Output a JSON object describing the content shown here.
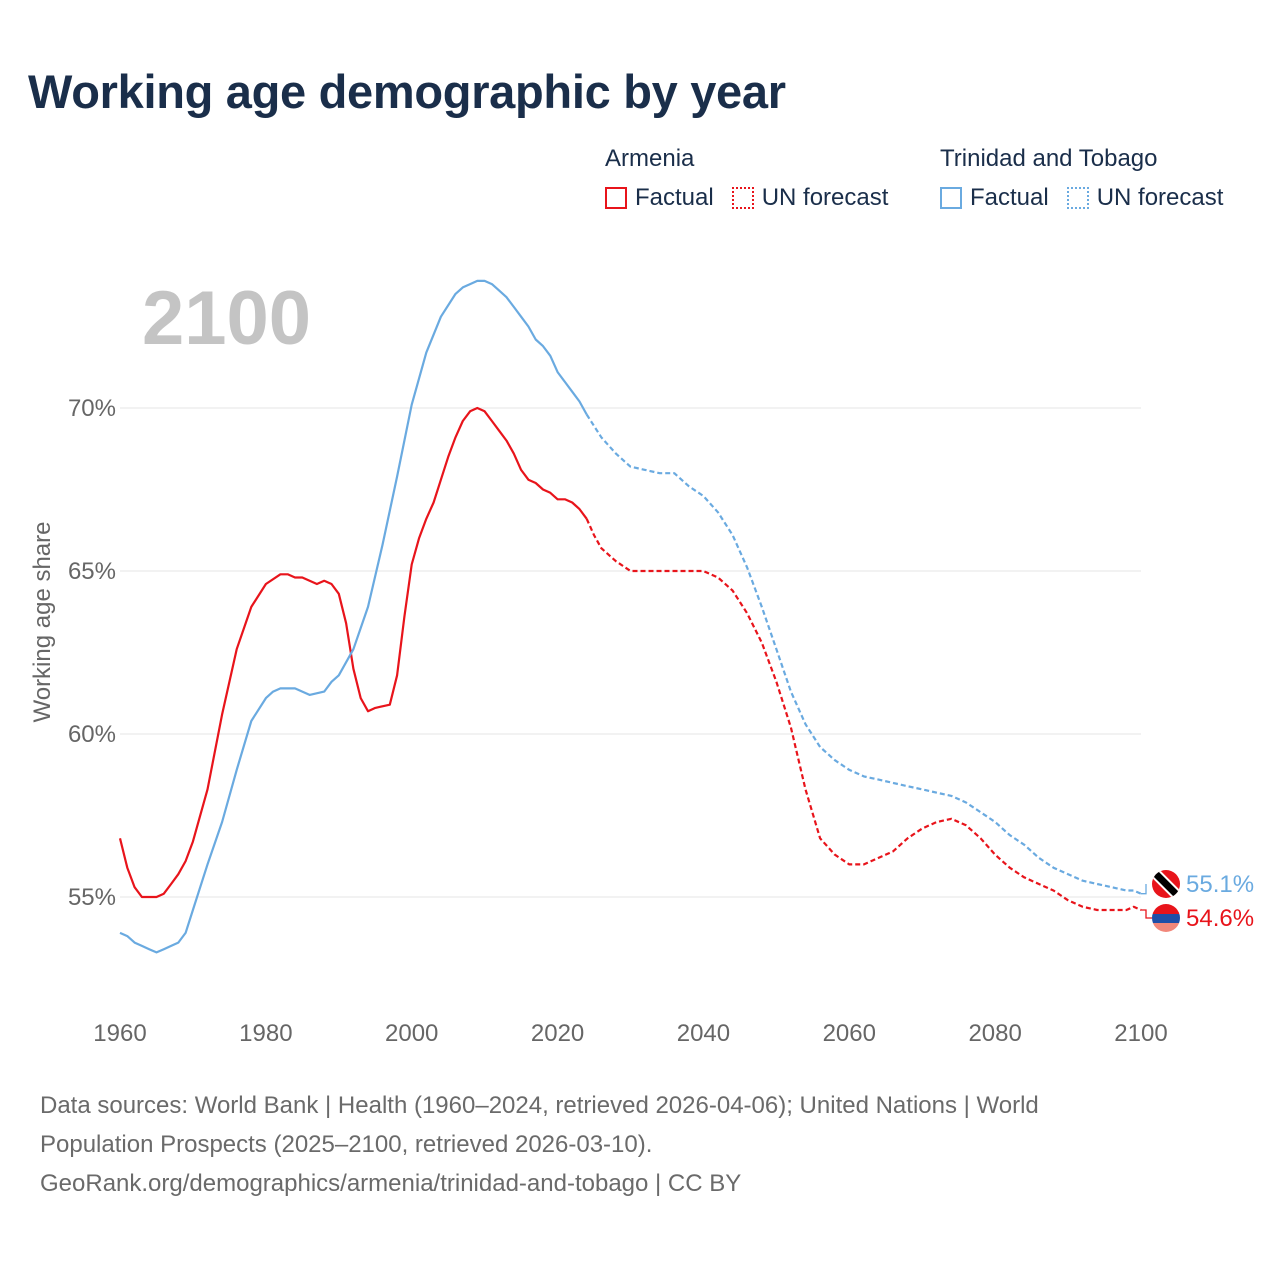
{
  "title": "Working age demographic by year",
  "colors": {
    "armenia": "#e8141b",
    "tt": "#6aaae0",
    "grid": "#e6e6e6",
    "axis_text": "#666666",
    "year_watermark": "#c4c4c4"
  },
  "legend": {
    "groups": [
      {
        "name": "Armenia",
        "factual": "Factual",
        "forecast": "UN forecast"
      },
      {
        "name": "Trinidad and Tobago",
        "factual": "Factual",
        "forecast": "UN forecast"
      }
    ]
  },
  "year_label": "2100",
  "footer": {
    "line1": "Data sources: World Bank | Health (1960–2024, retrieved 2026-04-06); United Nations | World",
    "line2": "Population Prospects (2025–2100, retrieved 2026-03-10).",
    "line3": "GeoRank.org/demographics/armenia/trinidad-and-tobago | CC BY"
  },
  "chart_data": {
    "type": "line",
    "title": "Working age demographic by year",
    "xlabel": "",
    "ylabel": "Working age share",
    "xlim": [
      1960,
      2100
    ],
    "ylim": [
      52.5,
      74.5
    ],
    "y_ticks": [
      55,
      60,
      65,
      70
    ],
    "y_tick_labels": [
      "55%",
      "60%",
      "65%",
      "70%"
    ],
    "x_ticks": [
      1960,
      1980,
      2000,
      2020,
      2040,
      2060,
      2080,
      2100
    ],
    "x_tick_labels": [
      "1960",
      "1980",
      "2000",
      "2020",
      "2040",
      "2060",
      "2080",
      "2100"
    ],
    "factual_end_year": 2024,
    "series": [
      {
        "name": "Armenia",
        "end_label": "54.6%",
        "x": [
          1960,
          1961,
          1962,
          1963,
          1964,
          1965,
          1966,
          1967,
          1968,
          1969,
          1970,
          1972,
          1974,
          1976,
          1978,
          1980,
          1982,
          1983,
          1984,
          1985,
          1986,
          1987,
          1988,
          1989,
          1990,
          1991,
          1992,
          1993,
          1994,
          1995,
          1997,
          1998,
          1999,
          2000,
          2001,
          2002,
          2003,
          2004,
          2005,
          2006,
          2007,
          2008,
          2009,
          2010,
          2011,
          2012,
          2013,
          2014,
          2015,
          2016,
          2017,
          2018,
          2019,
          2020,
          2021,
          2022,
          2023,
          2024,
          2025,
          2026,
          2028,
          2030,
          2032,
          2035,
          2040,
          2042,
          2044,
          2046,
          2048,
          2050,
          2052,
          2054,
          2056,
          2058,
          2060,
          2062,
          2064,
          2066,
          2068,
          2070,
          2072,
          2074,
          2076,
          2078,
          2080,
          2082,
          2084,
          2086,
          2088,
          2090,
          2092,
          2094,
          2096,
          2098,
          2099,
          2100
        ],
        "values": [
          56.8,
          55.9,
          55.3,
          55.0,
          55.0,
          55.0,
          55.1,
          55.4,
          55.7,
          56.1,
          56.7,
          58.3,
          60.6,
          62.6,
          63.9,
          64.6,
          64.9,
          64.9,
          64.8,
          64.8,
          64.7,
          64.6,
          64.7,
          64.6,
          64.3,
          63.4,
          62.0,
          61.1,
          60.7,
          60.8,
          60.9,
          61.8,
          63.6,
          65.2,
          66.0,
          66.6,
          67.1,
          67.8,
          68.5,
          69.1,
          69.6,
          69.9,
          70.0,
          69.9,
          69.6,
          69.3,
          69.0,
          68.6,
          68.1,
          67.8,
          67.7,
          67.5,
          67.4,
          67.2,
          67.2,
          67.1,
          66.9,
          66.6,
          66.1,
          65.7,
          65.3,
          65.0,
          65.0,
          65.0,
          65.0,
          64.8,
          64.4,
          63.7,
          62.8,
          61.6,
          60.2,
          58.3,
          56.8,
          56.3,
          56.0,
          56.0,
          56.2,
          56.4,
          56.8,
          57.1,
          57.3,
          57.4,
          57.2,
          56.8,
          56.3,
          55.9,
          55.6,
          55.4,
          55.2,
          54.9,
          54.7,
          54.6,
          54.6,
          54.6,
          54.7,
          54.6
        ]
      },
      {
        "name": "Trinidad and Tobago",
        "end_label": "55.1%",
        "x": [
          1960,
          1961,
          1962,
          1963,
          1964,
          1965,
          1966,
          1967,
          1968,
          1969,
          1970,
          1972,
          1974,
          1976,
          1978,
          1980,
          1981,
          1982,
          1984,
          1986,
          1988,
          1989,
          1990,
          1992,
          1994,
          1996,
          1998,
          2000,
          2002,
          2004,
          2006,
          2007,
          2008,
          2009,
          2010,
          2011,
          2012,
          2013,
          2014,
          2015,
          2016,
          2017,
          2018,
          2019,
          2020,
          2021,
          2022,
          2023,
          2024,
          2026,
          2028,
          2030,
          2032,
          2034,
          2036,
          2038,
          2040,
          2042,
          2044,
          2046,
          2048,
          2050,
          2052,
          2054,
          2056,
          2058,
          2060,
          2062,
          2064,
          2066,
          2068,
          2070,
          2072,
          2074,
          2076,
          2078,
          2080,
          2082,
          2084,
          2086,
          2088,
          2090,
          2092,
          2094,
          2096,
          2098,
          2099,
          2100
        ],
        "values": [
          53.9,
          53.8,
          53.6,
          53.5,
          53.4,
          53.3,
          53.4,
          53.5,
          53.6,
          53.9,
          54.6,
          56.0,
          57.3,
          58.9,
          60.4,
          61.1,
          61.3,
          61.4,
          61.4,
          61.2,
          61.3,
          61.6,
          61.8,
          62.6,
          63.9,
          65.8,
          67.9,
          70.1,
          71.7,
          72.8,
          73.5,
          73.7,
          73.8,
          73.9,
          73.9,
          73.8,
          73.6,
          73.4,
          73.1,
          72.8,
          72.5,
          72.1,
          71.9,
          71.6,
          71.1,
          70.8,
          70.5,
          70.2,
          69.8,
          69.1,
          68.6,
          68.2,
          68.1,
          68.0,
          68.0,
          67.6,
          67.3,
          66.8,
          66.1,
          65.1,
          63.9,
          62.6,
          61.3,
          60.3,
          59.6,
          59.2,
          58.9,
          58.7,
          58.6,
          58.5,
          58.4,
          58.3,
          58.2,
          58.1,
          57.9,
          57.6,
          57.3,
          56.9,
          56.6,
          56.2,
          55.9,
          55.7,
          55.5,
          55.4,
          55.3,
          55.2,
          55.2,
          55.1
        ]
      }
    ]
  }
}
